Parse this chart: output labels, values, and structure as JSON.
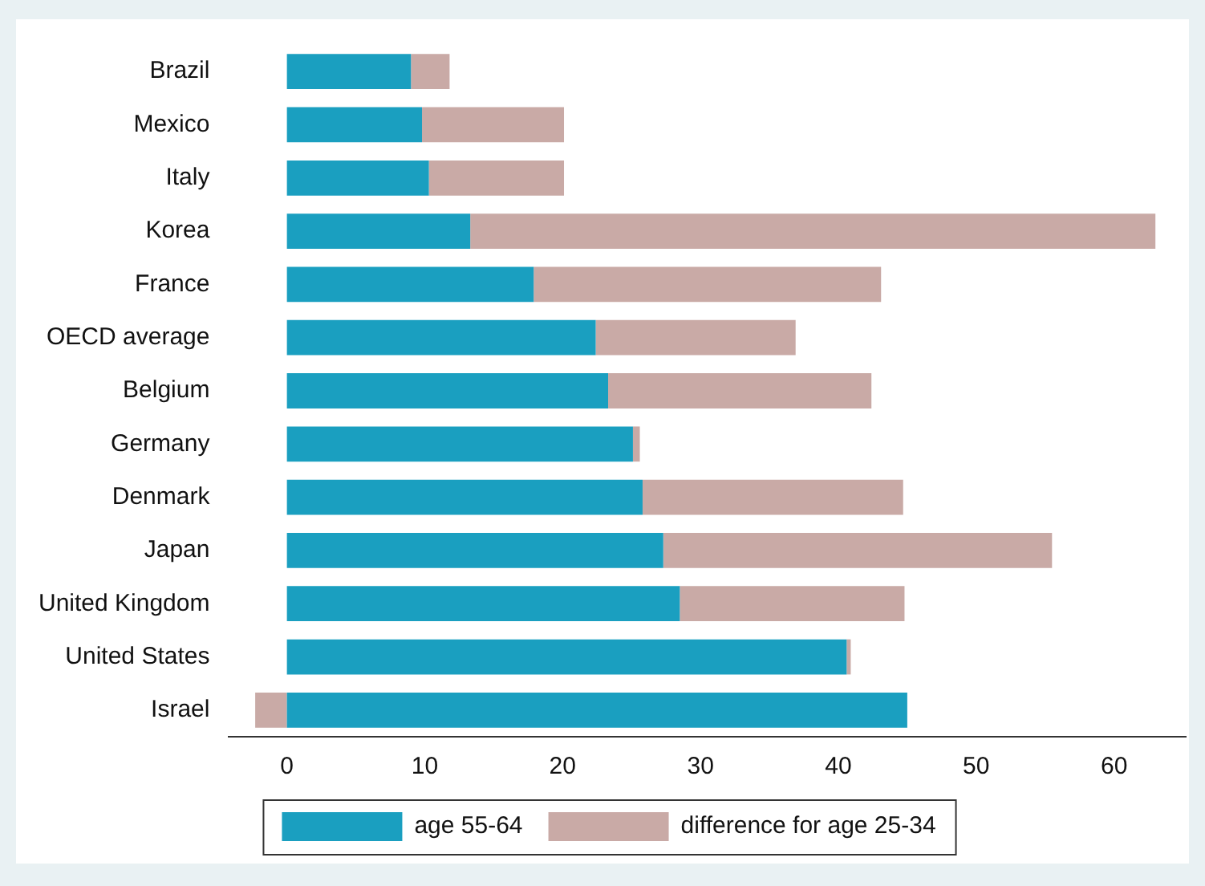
{
  "chart_data": {
    "type": "bar",
    "orientation": "horizontal",
    "stacked": true,
    "categories": [
      "Brazil",
      "Mexico",
      "Italy",
      "Korea",
      "France",
      "OECD average",
      "Belgium",
      "Germany",
      "Denmark",
      "Japan",
      "United Kingdom",
      "United States",
      "Israel"
    ],
    "series": [
      {
        "name": "age 55-64",
        "color": "#1a9fc0",
        "values": [
          9.0,
          9.8,
          10.3,
          13.3,
          17.9,
          22.4,
          23.3,
          25.1,
          25.8,
          27.3,
          28.5,
          40.6,
          45.0
        ]
      },
      {
        "name": "difference for age 25-34",
        "color": "#c9aaa6",
        "values": [
          2.8,
          10.3,
          9.8,
          49.7,
          25.2,
          14.5,
          19.1,
          0.5,
          18.9,
          28.2,
          16.3,
          0.3,
          -2.3
        ]
      }
    ],
    "xlim": [
      -4.2,
      65.2
    ],
    "xticks": [
      0,
      10,
      20,
      30,
      40,
      50,
      60
    ],
    "grid": false,
    "legend": "bottom"
  }
}
